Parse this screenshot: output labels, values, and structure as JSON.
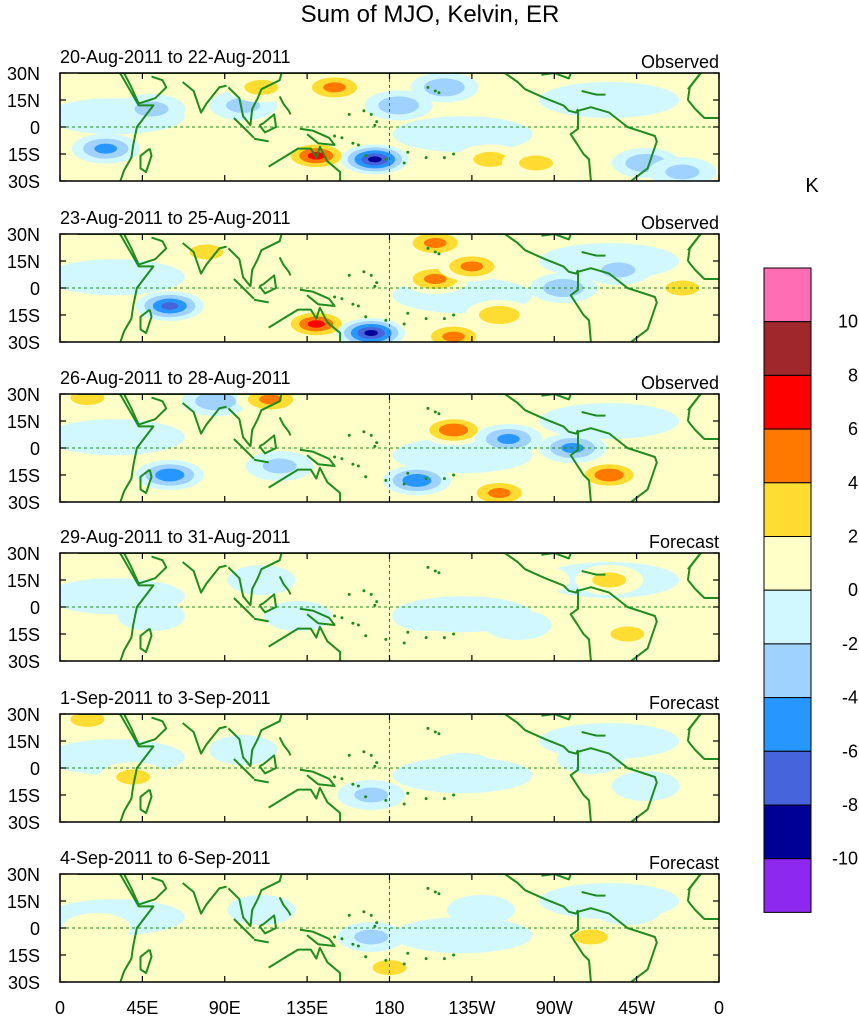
{
  "title": "Sum of MJO, Kelvin, ER",
  "units": "K",
  "lat_labels": [
    "30N",
    "15N",
    "0",
    "15S",
    "30S"
  ],
  "lon_labels": [
    "0",
    "45E",
    "90E",
    "135E",
    "180",
    "135W",
    "90W",
    "45W",
    "0"
  ],
  "panels": [
    {
      "date": "20-Aug-2011 to 22-Aug-2011",
      "type": "Observed"
    },
    {
      "date": "23-Aug-2011 to 25-Aug-2011",
      "type": "Observed"
    },
    {
      "date": "26-Aug-2011 to 28-Aug-2011",
      "type": "Observed"
    },
    {
      "date": "29-Aug-2011 to 31-Aug-2011",
      "type": "Forecast"
    },
    {
      "date": "1-Sep-2011 to 3-Sep-2011",
      "type": "Forecast"
    },
    {
      "date": "4-Sep-2011 to 6-Sep-2011",
      "type": "Forecast"
    }
  ],
  "colorbar": {
    "labels": [
      "10",
      "8",
      "6",
      "4",
      "2",
      "0",
      "-2",
      "-4",
      "-6",
      "-8",
      "-10"
    ],
    "colors": [
      "#ff6eb4",
      "#a0282d",
      "#ff0000",
      "#ff7800",
      "#ffdc32",
      "#ffffc8",
      "#d2f8ff",
      "#a0d2ff",
      "#2896ff",
      "#4664dc",
      "#000096",
      "#8c28f0"
    ]
  },
  "colors": {
    "coast": "#1e8c1e",
    "dashed": "#1e8c1e",
    "frame": "#000000"
  },
  "anomalies": [
    [
      {
        "lon": 25,
        "lat": -12,
        "v": -5
      },
      {
        "lon": 50,
        "lat": 10,
        "v": -3
      },
      {
        "lon": 100,
        "lat": 12,
        "v": -3
      },
      {
        "lon": 110,
        "lat": 22,
        "v": 3
      },
      {
        "lon": 140,
        "lat": -16,
        "v": 7
      },
      {
        "lon": 150,
        "lat": 22,
        "v": 5
      },
      {
        "lon": 172,
        "lat": -18,
        "v": -9
      },
      {
        "lon": 185,
        "lat": 12,
        "v": -4
      },
      {
        "lon": 210,
        "lat": 22,
        "v": -4
      },
      {
        "lon": 235,
        "lat": -18,
        "v": 3
      },
      {
        "lon": 260,
        "lat": -20,
        "v": 3
      },
      {
        "lon": 320,
        "lat": -20,
        "v": -4
      },
      {
        "lon": 340,
        "lat": -25,
        "v": -3
      }
    ],
    [
      {
        "lon": 60,
        "lat": -10,
        "v": -7
      },
      {
        "lon": 80,
        "lat": 20,
        "v": 3
      },
      {
        "lon": 140,
        "lat": -20,
        "v": 7
      },
      {
        "lon": 170,
        "lat": -25,
        "v": -9
      },
      {
        "lon": 205,
        "lat": 5,
        "v": 5
      },
      {
        "lon": 225,
        "lat": 12,
        "v": 5
      },
      {
        "lon": 205,
        "lat": 25,
        "v": 5
      },
      {
        "lon": 240,
        "lat": -15,
        "v": 4
      },
      {
        "lon": 275,
        "lat": 0,
        "v": -4
      },
      {
        "lon": 305,
        "lat": 10,
        "v": -3
      },
      {
        "lon": 340,
        "lat": 0,
        "v": 3
      },
      {
        "lon": 215,
        "lat": -27,
        "v": 5
      }
    ],
    [
      {
        "lon": 15,
        "lat": 28,
        "v": 3
      },
      {
        "lon": 85,
        "lat": 26,
        "v": -4
      },
      {
        "lon": 115,
        "lat": 27,
        "v": 5
      },
      {
        "lon": 60,
        "lat": -15,
        "v": -6
      },
      {
        "lon": 120,
        "lat": -10,
        "v": -3
      },
      {
        "lon": 215,
        "lat": 10,
        "v": 6
      },
      {
        "lon": 195,
        "lat": -18,
        "v": -6
      },
      {
        "lon": 245,
        "lat": 5,
        "v": -5
      },
      {
        "lon": 280,
        "lat": 0,
        "v": -5
      },
      {
        "lon": 300,
        "lat": -15,
        "v": 6
      },
      {
        "lon": 240,
        "lat": -25,
        "v": 5
      }
    ],
    [
      {
        "lon": 50,
        "lat": -5,
        "v": -2
      },
      {
        "lon": 110,
        "lat": 15,
        "v": -2
      },
      {
        "lon": 130,
        "lat": -5,
        "v": -2
      },
      {
        "lon": 200,
        "lat": -5,
        "v": -2
      },
      {
        "lon": 250,
        "lat": -10,
        "v": -2
      },
      {
        "lon": 300,
        "lat": 15,
        "v": 3
      },
      {
        "lon": 310,
        "lat": -15,
        "v": 3
      },
      {
        "lon": 260,
        "lat": 15,
        "v": 2
      }
    ],
    [
      {
        "lon": 15,
        "lat": 27,
        "v": 3
      },
      {
        "lon": 40,
        "lat": -5,
        "v": 3
      },
      {
        "lon": 100,
        "lat": 10,
        "v": -2
      },
      {
        "lon": 170,
        "lat": -15,
        "v": -3
      },
      {
        "lon": 220,
        "lat": 0,
        "v": -2
      },
      {
        "lon": 290,
        "lat": 5,
        "v": -2
      },
      {
        "lon": 320,
        "lat": -10,
        "v": -2
      }
    ],
    [
      {
        "lon": 20,
        "lat": 0,
        "v": 2
      },
      {
        "lon": 110,
        "lat": 10,
        "v": -2
      },
      {
        "lon": 170,
        "lat": -5,
        "v": -3
      },
      {
        "lon": 180,
        "lat": -22,
        "v": 3
      },
      {
        "lon": 230,
        "lat": 10,
        "v": -2
      },
      {
        "lon": 290,
        "lat": -5,
        "v": 3
      },
      {
        "lon": 310,
        "lat": 10,
        "v": -2
      }
    ]
  ]
}
